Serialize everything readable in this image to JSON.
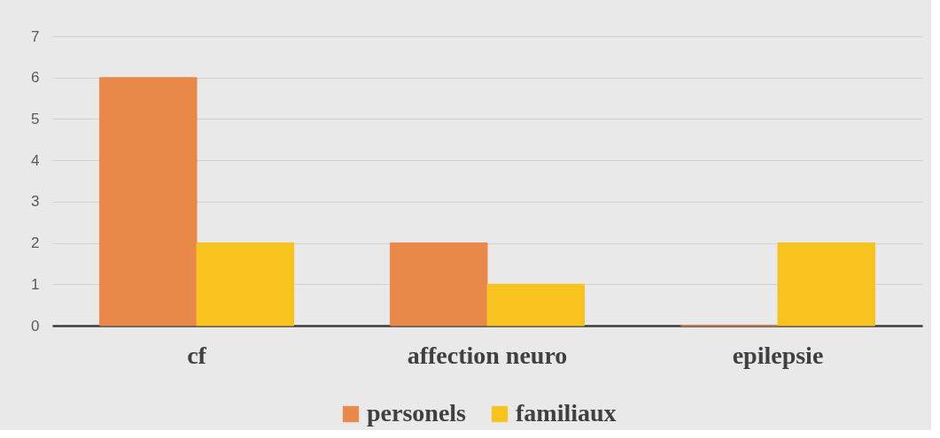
{
  "chart_data": {
    "type": "bar",
    "categories": [
      "cf",
      "affection neuro",
      "epilepsie"
    ],
    "series": [
      {
        "name": "personels",
        "color": "#e8894a",
        "values": [
          6,
          2,
          0
        ]
      },
      {
        "name": "familiaux",
        "color": "#f8c21f",
        "values": [
          2,
          1,
          2
        ]
      }
    ],
    "ylim": [
      0,
      7
    ],
    "yticks": [
      0,
      1,
      2,
      3,
      4,
      5,
      6,
      7
    ],
    "grid": "y",
    "legend": "bottom"
  }
}
